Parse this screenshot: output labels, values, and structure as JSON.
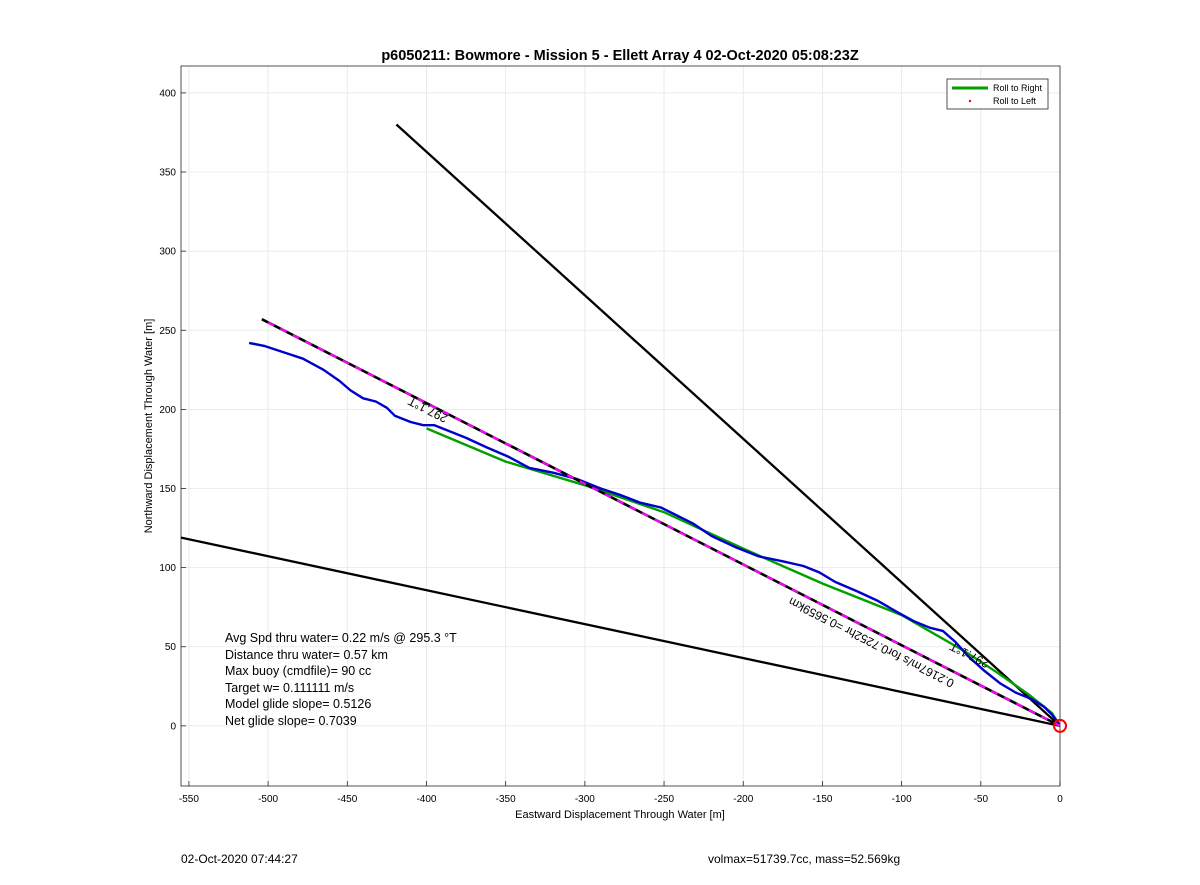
{
  "footer": {
    "timestamp": "02-Oct-2020 07:44:27",
    "vol_mass": "volmax=51739.7cc, mass=52.569kg"
  },
  "stats": [
    "Avg Spd thru water=  0.22 m/s @ 295.3 °T",
    "Distance thru water=  0.57 km",
    "Max buoy (cmdfile)= 90 cc",
    "Target w= 0.111111 m/s",
    "Model glide slope= 0.5126",
    "Net glide slope= 0.7039"
  ],
  "chart_data": {
    "type": "line",
    "title": "p6050211: Bowmore - Mission 5 - Ellett Array 4 02-Oct-2020 05:08:23Z",
    "xlabel": "Eastward Displacement Through Water [m]",
    "ylabel": "Northward Displacement Through Water [m]",
    "xlim": [
      -555,
      0
    ],
    "ylim": [
      -38,
      417
    ],
    "xticks": [
      -550,
      -500,
      -450,
      -400,
      -350,
      -300,
      -250,
      -200,
      -150,
      -100,
      -50,
      0
    ],
    "yticks": [
      0,
      50,
      100,
      150,
      200,
      250,
      300,
      350,
      400
    ],
    "grid": true,
    "legend_position": "top-right",
    "legend": [
      {
        "label": "Roll to Right",
        "color": "#00a000",
        "style": "line"
      },
      {
        "label": "Roll to Left",
        "color": "#ff0000",
        "style": "dot"
      }
    ],
    "series": [
      {
        "name": "Roll to Right",
        "color": "#00a000",
        "points": [
          [
            -400,
            188
          ],
          [
            -350,
            167
          ],
          [
            -300,
            152
          ],
          [
            -250,
            135
          ],
          [
            -200,
            112
          ],
          [
            -150,
            90
          ],
          [
            -100,
            70
          ],
          [
            -60,
            47
          ],
          [
            -40,
            34
          ],
          [
            -20,
            20
          ],
          [
            -5,
            8
          ],
          [
            0,
            0
          ]
        ]
      },
      {
        "color": "#0000cc",
        "points": [
          [
            -512,
            242
          ],
          [
            -502,
            240
          ],
          [
            -490,
            236
          ],
          [
            -478,
            232
          ],
          [
            -465,
            225
          ],
          [
            -455,
            218
          ],
          [
            -448,
            212
          ],
          [
            -440,
            207
          ],
          [
            -432,
            205
          ],
          [
            -425,
            201
          ],
          [
            -420,
            196
          ],
          [
            -410,
            192
          ],
          [
            -402,
            190
          ],
          [
            -395,
            190
          ],
          [
            -385,
            186
          ],
          [
            -375,
            182
          ],
          [
            -362,
            176
          ],
          [
            -348,
            170
          ],
          [
            -335,
            163
          ],
          [
            -320,
            160
          ],
          [
            -305,
            156
          ],
          [
            -290,
            150
          ],
          [
            -278,
            146
          ],
          [
            -265,
            141
          ],
          [
            -252,
            138
          ],
          [
            -244,
            134
          ],
          [
            -232,
            128
          ],
          [
            -220,
            120
          ],
          [
            -205,
            113
          ],
          [
            -190,
            107
          ],
          [
            -175,
            104
          ],
          [
            -162,
            101
          ],
          [
            -152,
            97
          ],
          [
            -142,
            91
          ],
          [
            -128,
            85
          ],
          [
            -115,
            79
          ],
          [
            -103,
            72
          ],
          [
            -92,
            66
          ],
          [
            -82,
            62
          ],
          [
            -74,
            60
          ],
          [
            -66,
            53
          ],
          [
            -58,
            44
          ],
          [
            -48,
            35
          ],
          [
            -38,
            27
          ],
          [
            -28,
            21
          ],
          [
            -18,
            17
          ],
          [
            -10,
            12
          ],
          [
            -5,
            7
          ],
          [
            -2,
            3
          ],
          [
            0,
            0
          ]
        ]
      },
      {
        "color": "#000000",
        "points": [
          [
            0,
            0
          ],
          [
            -419,
            380
          ]
        ]
      },
      {
        "color": "#000000",
        "points": [
          [
            0,
            0
          ],
          [
            -555,
            119
          ]
        ]
      },
      {
        "color": "#ff00ff",
        "dashed": true,
        "points": [
          [
            0,
            0
          ],
          [
            -504,
            257
          ]
        ]
      }
    ],
    "annotations": [
      {
        "text": "297.1°T",
        "x": -398,
        "y": 202,
        "rotation": 207
      },
      {
        "text": "0.2167m/s for0.7252hr =0.5659km",
        "x": -118,
        "y": 55,
        "rotation": 207
      },
      {
        "text": "297.1°T",
        "x": -56,
        "y": 47,
        "rotation": 207
      }
    ],
    "marker": {
      "x": 0,
      "y": 0,
      "color": "#ff0000"
    }
  }
}
